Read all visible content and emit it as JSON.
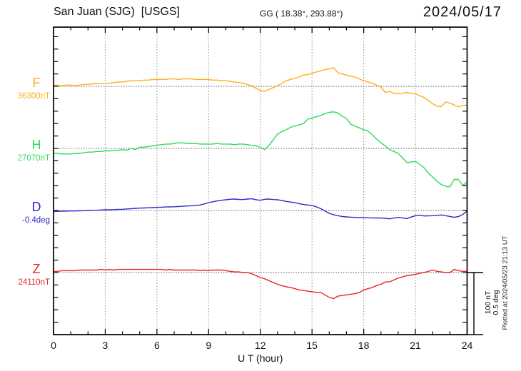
{
  "header": {
    "station": "San Juan (SJG)  [USGS]",
    "coordinates": "GG ( 18.38°, 293.88°)",
    "date": "2024/05/17"
  },
  "footer": {
    "plotted_at": "Plotted at 2024/05/23 21:13 UT"
  },
  "scale_bar": {
    "nt_label": "100 nT",
    "deg_label": "0.5 deg"
  },
  "chart_data": {
    "type": "line",
    "title": "San Juan (SJG) [USGS] magnetogram 2024/05/17",
    "xlabel": "U T (hour)",
    "x_range_hours": [
      0,
      24
    ],
    "x_ticks": [
      0,
      3,
      6,
      9,
      12,
      15,
      18,
      21,
      24
    ],
    "x_minor_step_hours": 1,
    "step_hours": 0.25,
    "grid": "dotted vertical at 3h, dotted baseline per trace",
    "scale": {
      "nT_per_division": 100,
      "deg_per_division": 0.5
    },
    "series": [
      {
        "name": "F",
        "unit": "nT",
        "baseline_label": "36300nT",
        "baseline_value": 36300,
        "color": "#FFAE1A",
        "values": [
          36302,
          36302,
          36301,
          36302,
          36302,
          36301,
          36302,
          36303,
          36303,
          36304,
          36304,
          36305,
          36305,
          36305,
          36306,
          36307,
          36307,
          36308,
          36309,
          36309,
          36309,
          36310,
          36310,
          36311,
          36311,
          36311,
          36311,
          36312,
          36312,
          36311,
          36312,
          36312,
          36312,
          36311,
          36311,
          36311,
          36311,
          36310,
          36310,
          36309,
          36309,
          36308,
          36307,
          36306,
          36305,
          36303,
          36301,
          36297,
          36293,
          36292,
          36295,
          36298,
          36301,
          36305,
          36309,
          36311,
          36313,
          36315,
          36318,
          36319,
          36321,
          36323,
          36325,
          36327,
          36328,
          36330,
          36322,
          36320,
          36318,
          36316,
          36315,
          36312,
          36309,
          36307,
          36305,
          36302,
          36299,
          36290,
          36292,
          36289,
          36288,
          36289,
          36290,
          36289,
          36288,
          36285,
          36282,
          36277,
          36272,
          36268,
          36267,
          36275,
          36273,
          36270,
          36267,
          36269,
          36270
        ]
      },
      {
        "name": "H",
        "unit": "nT",
        "baseline_label": "27070nT",
        "baseline_value": 27070,
        "color": "#2EDC5A",
        "values": [
          27062,
          27062,
          27061,
          27061,
          27061,
          27062,
          27062,
          27063,
          27064,
          27064,
          27065,
          27065,
          27066,
          27066,
          27067,
          27067,
          27068,
          27067,
          27070,
          27068,
          27072,
          27072,
          27073,
          27074,
          27075,
          27076,
          27077,
          27077,
          27078,
          27079,
          27079,
          27078,
          27078,
          27078,
          27077,
          27077,
          27077,
          27077,
          27078,
          27077,
          27077,
          27077,
          27076,
          27077,
          27077,
          27076,
          27075,
          27074,
          27072,
          27068,
          27075,
          27084,
          27093,
          27097,
          27100,
          27104,
          27106,
          27108,
          27110,
          27117,
          27119,
          27121,
          27123,
          27126,
          27128,
          27129,
          27127,
          27122,
          27118,
          27109,
          27106,
          27103,
          27100,
          27098,
          27092,
          27085,
          27079,
          27074,
          27068,
          27065,
          27062,
          27055,
          27047,
          27048,
          27049,
          27044,
          27039,
          27030,
          27024,
          27017,
          27012,
          27009,
          27008,
          27020,
          27020,
          27010,
          27016
        ]
      },
      {
        "name": "D",
        "unit": "deg",
        "baseline_label": "-0.4deg",
        "baseline_value": -0.4,
        "color": "#2B2BCF",
        "values": [
          -0.408,
          -0.407,
          -0.406,
          -0.405,
          -0.404,
          -0.404,
          -0.403,
          -0.402,
          -0.4,
          -0.399,
          -0.398,
          -0.396,
          -0.394,
          -0.394,
          -0.393,
          -0.391,
          -0.39,
          -0.388,
          -0.386,
          -0.383,
          -0.381,
          -0.38,
          -0.378,
          -0.377,
          -0.375,
          -0.374,
          -0.372,
          -0.371,
          -0.37,
          -0.368,
          -0.366,
          -0.364,
          -0.362,
          -0.359,
          -0.356,
          -0.347,
          -0.337,
          -0.33,
          -0.323,
          -0.318,
          -0.314,
          -0.31,
          -0.308,
          -0.311,
          -0.312,
          -0.308,
          -0.306,
          -0.313,
          -0.318,
          -0.31,
          -0.308,
          -0.312,
          -0.314,
          -0.32,
          -0.327,
          -0.332,
          -0.337,
          -0.345,
          -0.352,
          -0.356,
          -0.36,
          -0.37,
          -0.385,
          -0.404,
          -0.423,
          -0.434,
          -0.442,
          -0.448,
          -0.452,
          -0.454,
          -0.456,
          -0.456,
          -0.457,
          -0.459,
          -0.461,
          -0.46,
          -0.461,
          -0.463,
          -0.467,
          -0.461,
          -0.456,
          -0.46,
          -0.465,
          -0.453,
          -0.442,
          -0.438,
          -0.444,
          -0.443,
          -0.442,
          -0.439,
          -0.436,
          -0.442,
          -0.448,
          -0.455,
          -0.449,
          -0.432,
          -0.404
        ]
      },
      {
        "name": "Z",
        "unit": "nT",
        "baseline_label": "24110nT",
        "baseline_value": 24110,
        "color": "#E62626",
        "values": [
          24112,
          24112,
          24113,
          24113,
          24113,
          24113,
          24114,
          24114,
          24114,
          24114,
          24114,
          24115,
          24114,
          24115,
          24114,
          24115,
          24115,
          24115,
          24115,
          24115,
          24115,
          24115,
          24115,
          24115,
          24115,
          24115,
          24114,
          24115,
          24114,
          24114,
          24114,
          24114,
          24114,
          24114,
          24113,
          24114,
          24113,
          24114,
          24114,
          24114,
          24113,
          24112,
          24111,
          24111,
          24110,
          24110,
          24108,
          24105,
          24102,
          24100,
          24097,
          24094,
          24091,
          24089,
          24087,
          24086,
          24084,
          24082,
          24081,
          24080,
          24079,
          24078,
          24078,
          24074,
          24070,
          24068,
          24072,
          24073,
          24074,
          24075,
          24076,
          24078,
          24082,
          24084,
          24086,
          24089,
          24091,
          24095,
          24095,
          24098,
          24101,
          24103,
          24105,
          24106,
          24107,
          24109,
          24110,
          24112,
          24114,
          24112,
          24111,
          24110,
          24110,
          24115,
          24113,
          24112,
          24112
        ]
      }
    ]
  }
}
